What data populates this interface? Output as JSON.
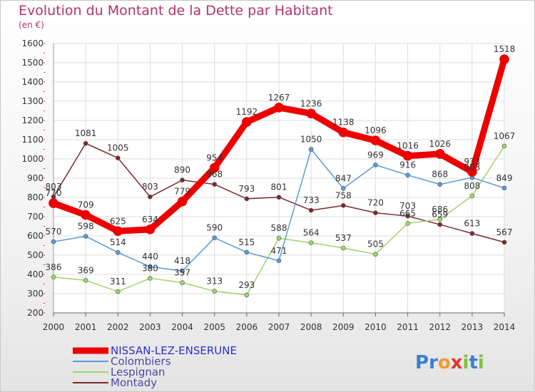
{
  "title": "Evolution du Montant de la Dette par Habitant",
  "subtitle": "(en €)",
  "brand": "Proxiti",
  "chart_data": {
    "type": "line",
    "x": [
      "2000",
      "2001",
      "2002",
      "2003",
      "2004",
      "2005",
      "2006",
      "2007",
      "2008",
      "2009",
      "2010",
      "2011",
      "2012",
      "2013",
      "2014"
    ],
    "ylim": [
      200,
      1600
    ],
    "yticks": [
      200,
      300,
      400,
      500,
      600,
      700,
      800,
      900,
      1000,
      1100,
      1200,
      1300,
      1400,
      1500,
      1600
    ],
    "grid": true,
    "legend_position": "bottom-left",
    "series": [
      {
        "name": "Montady",
        "color": "#7b2a2a",
        "width": 1.5,
        "values": [
          803,
          1081,
          1005,
          803,
          890,
          868,
          793,
          801,
          733,
          758,
          720,
          703,
          659,
          613,
          567
        ],
        "labels": [
          "803",
          "1081",
          "1005",
          "803",
          "890",
          "868",
          "793",
          "801",
          "733",
          "758",
          "720",
          "703",
          "659",
          "613",
          "567"
        ]
      },
      {
        "name": "Lespignan",
        "color": "#9ed66a",
        "width": 1.5,
        "values": [
          386,
          369,
          311,
          380,
          357,
          313,
          293,
          588,
          564,
          537,
          505,
          665,
          686,
          808,
          1067
        ],
        "labels": [
          "386",
          "369",
          "311",
          "380",
          "357",
          "313",
          "293",
          "588",
          "564",
          "537",
          "505",
          "665",
          "686",
          "808",
          "1067"
        ]
      },
      {
        "name": "Colombiers",
        "color": "#5b9bd5",
        "width": 1.5,
        "values": [
          570,
          598,
          514,
          440,
          418,
          590,
          515,
          471,
          1050,
          847,
          969,
          916,
          868,
          903,
          849
        ],
        "labels": [
          "570",
          "598",
          "514",
          "440",
          "418",
          "590",
          "515",
          "471",
          "1050",
          "847",
          "969",
          "916",
          "868",
          "903",
          "849"
        ]
      },
      {
        "name": "NISSAN-LEZ-ENSERUNE",
        "color": "#ee0000",
        "width": 9,
        "values": [
          770,
          709,
          625,
          634,
          779,
          954,
          1192,
          1267,
          1236,
          1138,
          1096,
          1016,
          1026,
          933,
          1518
        ],
        "labels": [
          "770",
          "709",
          "625",
          "634",
          "779",
          "954",
          "1192",
          "1267",
          "1236",
          "1138",
          "1096",
          "1016",
          "1026",
          "933",
          "1518"
        ]
      }
    ]
  },
  "legend": [
    {
      "name": "NISSAN-LEZ-ENSERUNE",
      "color": "#ee0000",
      "width": 9
    },
    {
      "name": "Colombiers",
      "color": "#5b9bd5",
      "width": 2
    },
    {
      "name": "Lespignan",
      "color": "#9ed66a",
      "width": 2
    },
    {
      "name": "Montady",
      "color": "#7b2a2a",
      "width": 2
    }
  ]
}
